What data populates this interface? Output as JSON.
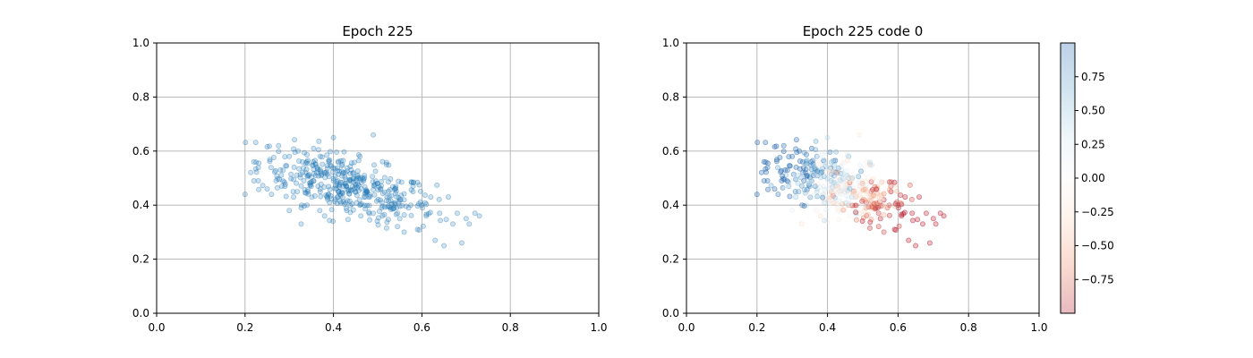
{
  "chart_data": [
    {
      "type": "scatter",
      "title": "Epoch 225",
      "xlim": [
        0,
        1
      ],
      "ylim": [
        0,
        1
      ],
      "x_ticks": [
        "0.0",
        "0.2",
        "0.4",
        "0.6",
        "0.8",
        "1.0"
      ],
      "y_ticks": [
        "0.0",
        "0.2",
        "0.4",
        "0.6",
        "0.8",
        "1.0"
      ],
      "grid": true,
      "marker_color": "#1f77b4",
      "marker_alpha": 0.22,
      "point_count": 450,
      "point_cloud": {
        "x_range": [
          0.2,
          0.73
        ],
        "y_range": [
          0.25,
          0.66
        ],
        "center": [
          0.43,
          0.46
        ],
        "trend": "y decreases as x increases"
      },
      "points": [
        [
          0.2,
          0.44
        ],
        [
          0.22,
          0.49
        ],
        [
          0.23,
          0.49
        ],
        [
          0.25,
          0.46
        ],
        [
          0.26,
          0.44
        ],
        [
          0.27,
          0.49
        ],
        [
          0.28,
          0.53
        ],
        [
          0.29,
          0.47
        ],
        [
          0.3,
          0.58
        ],
        [
          0.3,
          0.38
        ],
        [
          0.31,
          0.43
        ],
        [
          0.32,
          0.6
        ],
        [
          0.33,
          0.52
        ],
        [
          0.34,
          0.56
        ],
        [
          0.34,
          0.4
        ],
        [
          0.35,
          0.47
        ],
        [
          0.36,
          0.55
        ],
        [
          0.36,
          0.51
        ],
        [
          0.37,
          0.58
        ],
        [
          0.37,
          0.45
        ],
        [
          0.38,
          0.52
        ],
        [
          0.38,
          0.36
        ],
        [
          0.39,
          0.56
        ],
        [
          0.4,
          0.65
        ],
        [
          0.4,
          0.49
        ],
        [
          0.41,
          0.43
        ],
        [
          0.42,
          0.55
        ],
        [
          0.43,
          0.47
        ],
        [
          0.43,
          0.38
        ],
        [
          0.44,
          0.53
        ],
        [
          0.45,
          0.45
        ],
        [
          0.46,
          0.58
        ],
        [
          0.46,
          0.4
        ],
        [
          0.47,
          0.5
        ],
        [
          0.48,
          0.43
        ],
        [
          0.49,
          0.66
        ],
        [
          0.49,
          0.37
        ],
        [
          0.5,
          0.48
        ],
        [
          0.51,
          0.41
        ],
        [
          0.52,
          0.55
        ],
        [
          0.53,
          0.39
        ],
        [
          0.54,
          0.46
        ],
        [
          0.55,
          0.35
        ],
        [
          0.56,
          0.42
        ],
        [
          0.56,
          0.3
        ],
        [
          0.57,
          0.39
        ],
        [
          0.58,
          0.47
        ],
        [
          0.59,
          0.31
        ],
        [
          0.6,
          0.4
        ],
        [
          0.61,
          0.36
        ],
        [
          0.62,
          0.43
        ],
        [
          0.63,
          0.27
        ],
        [
          0.64,
          0.37
        ],
        [
          0.65,
          0.25
        ],
        [
          0.66,
          0.43
        ],
        [
          0.67,
          0.33
        ],
        [
          0.68,
          0.37
        ],
        [
          0.69,
          0.26
        ],
        [
          0.7,
          0.35
        ],
        [
          0.72,
          0.37
        ],
        [
          0.73,
          0.36
        ]
      ]
    },
    {
      "type": "scatter",
      "title": "Epoch 225 code 0",
      "xlim": [
        0,
        1
      ],
      "ylim": [
        0,
        1
      ],
      "x_ticks": [
        "0.0",
        "0.2",
        "0.4",
        "0.6",
        "0.8",
        "1.0"
      ],
      "y_ticks": [
        "0.0",
        "0.2",
        "0.4",
        "0.6",
        "0.8",
        "1.0"
      ],
      "grid": true,
      "marker_alpha": 0.28,
      "colormap": "RdBu",
      "color_range": [
        -1,
        1
      ],
      "color_trend": "blue (positive) toward low x / high y, red (negative) toward high x",
      "colorbar": {
        "ticks": [
          "0.75",
          "0.50",
          "0.25",
          "0.00",
          "−0.25",
          "−0.50",
          "−0.75"
        ],
        "tick_values": [
          0.75,
          0.5,
          0.25,
          0.0,
          -0.25,
          -0.5,
          -0.75
        ],
        "colors": [
          "#b2182b",
          "#ef8a62",
          "#fddbc7",
          "#f7f7f7",
          "#d1e5f0",
          "#67a9cf",
          "#2166ac"
        ]
      }
    }
  ]
}
